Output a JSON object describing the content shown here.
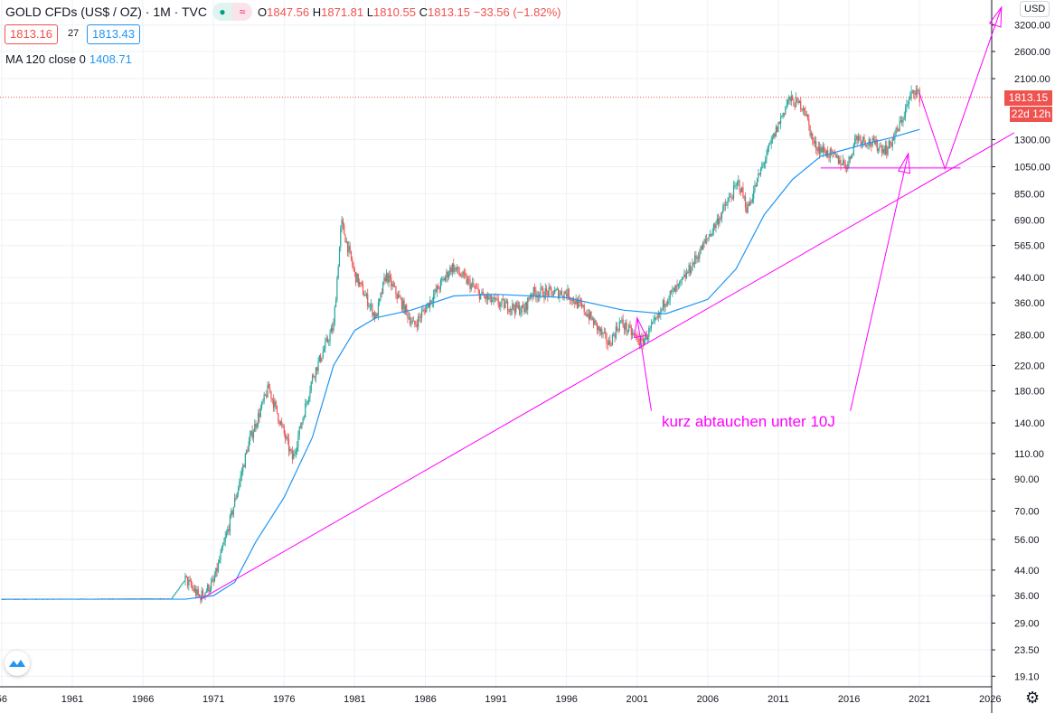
{
  "header": {
    "symbol": "GOLD CFDs (US$ / OZ) · 1M · TVC",
    "open_label": "O",
    "open": "1847.56",
    "high_label": "H",
    "high": "1871.81",
    "low_label": "L",
    "low": "1810.55",
    "close_label": "C",
    "close": "1813.15",
    "change": "−33.56 (−1.82%)",
    "pill_left": "●",
    "pill_right": "≈",
    "sell": "1813.16",
    "spread": "27",
    "buy": "1813.43"
  },
  "indicator": {
    "label": "MA 120 close 0",
    "value": "1408.71"
  },
  "axis": {
    "currency": "USD",
    "last_price": "1813.15",
    "countdown": "22d 12h"
  },
  "annotation": {
    "text": "kurz abtauchen unter 10J"
  },
  "colors": {
    "up": "#26a69a",
    "down": "#ef5350",
    "ma": "#2196f3",
    "drawing": "#ff00ff"
  },
  "chart_data": {
    "type": "candlestick",
    "title": "GOLD CFDs (US$ / OZ) · 1M · TVC",
    "y_scale": "log",
    "y_ticks": [
      "3200.00",
      "2600.00",
      "2100.00",
      "1300.00",
      "1050.00",
      "850.00",
      "690.00",
      "565.00",
      "440.00",
      "360.00",
      "280.00",
      "220.00",
      "180.00",
      "140.00",
      "110.00",
      "90.00",
      "70.00",
      "56.00",
      "44.00",
      "36.00",
      "29.00",
      "23.50",
      "19.10"
    ],
    "x_ticks": [
      "56",
      "1961",
      "1966",
      "1971",
      "1976",
      "1981",
      "1986",
      "1991",
      "1996",
      "2001",
      "2006",
      "2011",
      "2016",
      "2021",
      "2026"
    ],
    "price_path": [
      [
        1956,
        35
      ],
      [
        1968,
        35.2
      ],
      [
        1969,
        41
      ],
      [
        1970,
        35.5
      ],
      [
        1971,
        40
      ],
      [
        1972,
        60
      ],
      [
        1973.5,
        120
      ],
      [
        1974.9,
        185
      ],
      [
        1976.6,
        105
      ],
      [
        1978,
        200
      ],
      [
        1979.5,
        300
      ],
      [
        1980.05,
        680
      ],
      [
        1981,
        450
      ],
      [
        1982.5,
        320
      ],
      [
        1983.2,
        450
      ],
      [
        1985.2,
        300
      ],
      [
        1987.9,
        480
      ],
      [
        1990,
        380
      ],
      [
        1991,
        360
      ],
      [
        1993,
        340
      ],
      [
        1993.5,
        390
      ],
      [
        1996,
        390
      ],
      [
        1997.5,
        330
      ],
      [
        1999,
        260
      ],
      [
        1999.8,
        310
      ],
      [
        2001.3,
        262
      ],
      [
        2002.5,
        320
      ],
      [
        2003,
        370
      ],
      [
        2004,
        410
      ],
      [
        2006,
        600
      ],
      [
        2008.2,
        930
      ],
      [
        2008.8,
        750
      ],
      [
        2010,
        1100
      ],
      [
        2011.7,
        1780
      ],
      [
        2012.8,
        1690
      ],
      [
        2013.5,
        1250
      ],
      [
        2015.9,
        1060
      ],
      [
        2016.5,
        1330
      ],
      [
        2018.7,
        1200
      ],
      [
        2019.5,
        1420
      ],
      [
        2020.6,
        1950
      ],
      [
        2021.0,
        1813
      ]
    ],
    "ma_series": {
      "name": "MA 120 close 0",
      "points": [
        [
          1956,
          35
        ],
        [
          1969,
          35
        ],
        [
          1971,
          36
        ],
        [
          1972.5,
          40
        ],
        [
          1974,
          55
        ],
        [
          1976,
          78
        ],
        [
          1978,
          125
        ],
        [
          1979.5,
          220
        ],
        [
          1981,
          290
        ],
        [
          1982.5,
          320
        ],
        [
          1985,
          340
        ],
        [
          1988,
          380
        ],
        [
          1991,
          385
        ],
        [
          1996,
          375
        ],
        [
          2000,
          340
        ],
        [
          2003,
          330
        ],
        [
          2006,
          370
        ],
        [
          2008,
          470
        ],
        [
          2010,
          720
        ],
        [
          2012,
          950
        ],
        [
          2014,
          1140
        ],
        [
          2017,
          1250
        ],
        [
          2019,
          1320
        ],
        [
          2021,
          1408
        ]
      ]
    },
    "drawings": [
      {
        "name": "trend-line",
        "points": [
          [
            1970.1,
            35
          ],
          [
            2027.7,
            1372
          ]
        ]
      },
      {
        "name": "support-line",
        "points": [
          [
            2014.0,
            1040
          ],
          [
            2023.9,
            1040
          ]
        ]
      },
      {
        "name": "projection-path",
        "points": [
          [
            2021.0,
            1870
          ],
          [
            2022.8,
            1032
          ],
          [
            2026.8,
            3683
          ]
        ],
        "arrow": true
      },
      {
        "name": "annotation-arrow-2001",
        "points": [
          [
            2002.0,
            154
          ],
          [
            2001.0,
            320
          ]
        ],
        "arrow": true
      },
      {
        "name": "annotation-arrow-2020",
        "points": [
          [
            2016.1,
            154
          ],
          [
            2020.2,
            1165
          ]
        ],
        "arrow": true
      }
    ]
  }
}
